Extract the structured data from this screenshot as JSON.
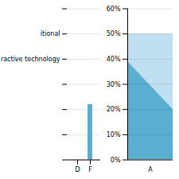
{
  "chart_data": [
    {
      "type": "bar",
      "categories": [
        "D",
        "F"
      ],
      "values": [
        0,
        22
      ],
      "color": "#5AAFD1",
      "ylim": [
        0,
        60
      ],
      "yticks": [
        {
          "value": 0,
          "label": null
        },
        {
          "value": 10,
          "label": null
        },
        {
          "value": 20,
          "label": null
        },
        {
          "value": 30,
          "label": null
        },
        {
          "value": 40,
          "label": "ractive technology"
        },
        {
          "value": 50,
          "label": "itional"
        },
        {
          "value": 60,
          "label": null
        }
      ],
      "grid": true
    },
    {
      "type": "area",
      "categories": [
        "A"
      ],
      "series": [
        {
          "color": "#C0DFF0",
          "values": [
            50
          ]
        },
        {
          "color": "#5AAFD1",
          "values": [
            39
          ],
          "end_values": [
            20
          ]
        }
      ],
      "ylim": [
        0,
        60
      ],
      "yticks": [
        {
          "value": 0,
          "label": "0%"
        },
        {
          "value": 10,
          "label": "10%"
        },
        {
          "value": 20,
          "label": "20%"
        },
        {
          "value": 30,
          "label": "30%"
        },
        {
          "value": 40,
          "label": "40%"
        },
        {
          "value": 50,
          "label": "50%"
        },
        {
          "value": 60,
          "label": "60%"
        }
      ],
      "grid": true
    }
  ]
}
